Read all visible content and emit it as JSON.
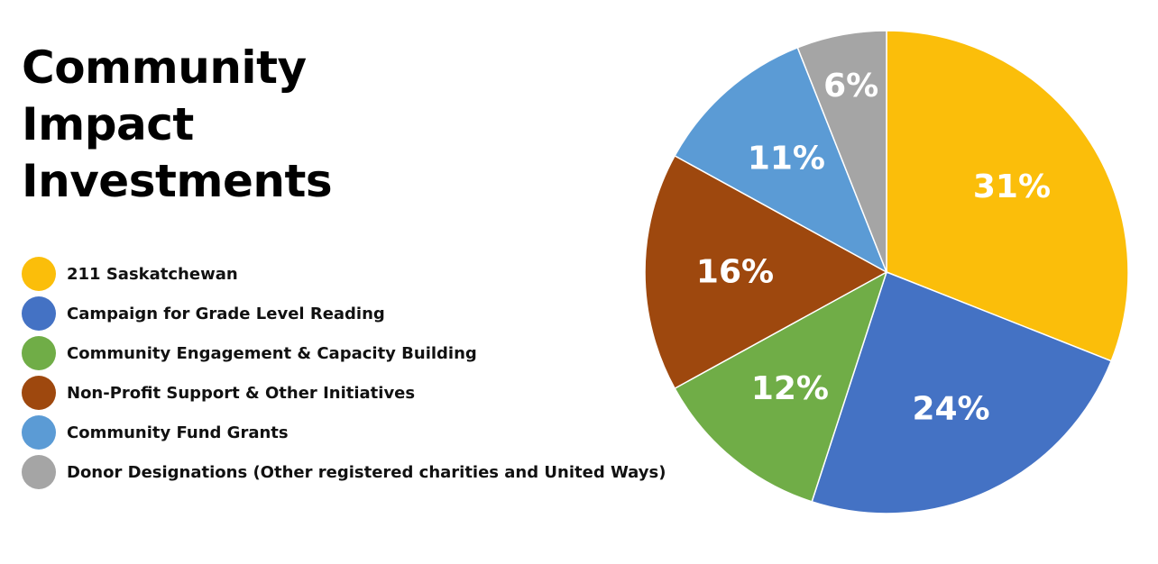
{
  "title_lines": [
    "Community",
    "Impact",
    "Investments"
  ],
  "chart_data": {
    "type": "pie",
    "title": "Community Impact Investments",
    "categories": [
      "211 Saskatchewan",
      "Campaign for Grade Level Reading",
      "Community Engagement & Capacity Building",
      "Non-Profit Support & Other Initiatives",
      "Community Fund Grants",
      "Donor Designations (Other registered charities and United Ways)"
    ],
    "values": [
      31,
      24,
      12,
      16,
      11,
      6
    ],
    "data_labels": [
      "31%",
      "24%",
      "12%",
      "16%",
      "11%",
      "6%"
    ],
    "colors": [
      "#FBBE0A",
      "#4472C4",
      "#70AD47",
      "#9E480E",
      "#5B9BD5",
      "#A5A5A5"
    ],
    "start_angle": "12 o'clock",
    "direction": "clockwise",
    "legend_placement": "left"
  }
}
